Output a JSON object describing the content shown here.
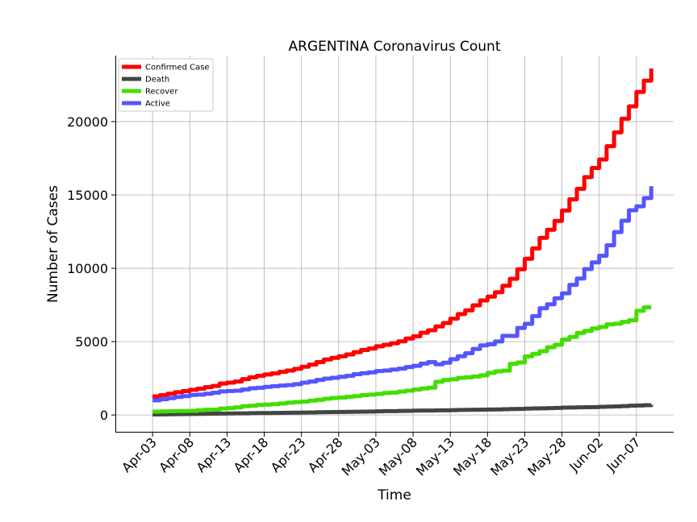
{
  "chart_data": {
    "type": "line",
    "title": "ARGENTINA Coronavirus Count",
    "xlabel": "Time",
    "ylabel": "Number of Cases",
    "x_start": "2020-04-03",
    "x_end": "2020-06-09",
    "xlim": [
      "2020-03-29",
      "2020-06-12"
    ],
    "ylim": [
      -1200,
      24500
    ],
    "x_ticks": [
      "Apr-03",
      "Apr-08",
      "Apr-13",
      "Apr-18",
      "Apr-23",
      "Apr-28",
      "May-03",
      "May-08",
      "May-13",
      "May-18",
      "May-23",
      "May-28",
      "Jun-02",
      "Jun-07"
    ],
    "y_ticks": [
      0,
      5000,
      10000,
      15000,
      20000
    ],
    "y_tick_labels": [
      "0",
      "5000",
      "10000",
      "15000",
      "20000"
    ],
    "grid": true,
    "legend_position": "top-left",
    "series": [
      {
        "name": "Confirmed Case",
        "color": "#ff0000",
        "values": [
          1265,
          1353,
          1451,
          1554,
          1628,
          1715,
          1795,
          1894,
          1975,
          2142,
          2208,
          2277,
          2443,
          2571,
          2669,
          2758,
          2839,
          2941,
          3031,
          3144,
          3288,
          3435,
          3607,
          3780,
          3892,
          4003,
          4127,
          4285,
          4428,
          4532,
          4681,
          4783,
          4887,
          5020,
          5208,
          5371,
          5611,
          5776,
          6034,
          6265,
          6563,
          6879,
          7134,
          7479,
          7805,
          8068,
          8371,
          8809,
          9283,
          9931,
          10649,
          11353,
          12076,
          12628,
          13228,
          13933,
          14702,
          15419,
          16214,
          16838,
          17415,
          18319,
          19268,
          20197,
          21037,
          22020,
          22794,
          23620
        ]
      },
      {
        "name": "Death",
        "color": "#444444",
        "values": [
          37,
          44,
          48,
          56,
          63,
          69,
          79,
          84,
          92,
          97,
          102,
          109,
          111,
          122,
          129,
          132,
          136,
          147,
          152,
          159,
          166,
          176,
          185,
          192,
          197,
          207,
          214,
          218,
          225,
          237,
          246,
          260,
          264,
          273,
          282,
          293,
          300,
          305,
          314,
          319,
          329,
          344,
          353,
          356,
          363,
          373,
          382,
          393,
          403,
          416,
          433,
          445,
          452,
          467,
          484,
          500,
          508,
          520,
          528,
          539,
          556,
          569,
          583,
          608,
          632,
          648,
          664,
          693
        ]
      },
      {
        "name": "Recover",
        "color": "#44dd00",
        "values": [
          228,
          240,
          256,
          266,
          279,
          280,
          325,
          358,
          365,
          440,
          468,
          515,
          596,
          631,
          685,
          709,
          737,
          787,
          840,
          880,
          916,
          976,
          1030,
          1107,
          1162,
          1192,
          1245,
          1283,
          1356,
          1391,
          1439,
          1498,
          1524,
          1591,
          1659,
          1728,
          1809,
          1864,
          2266,
          2385,
          2430,
          2534,
          2569,
          2625,
          2697,
          2872,
          2975,
          3021,
          3487,
          3580,
          3999,
          4167,
          4349,
          4617,
          4788,
          5140,
          5323,
          5597,
          5736,
          5896,
          6003,
          6180,
          6220,
          6346,
          6452,
          7100,
          7340,
          7340
        ]
      },
      {
        "name": "Active",
        "color": "#5555ff",
        "values": [
          1000,
          1069,
          1147,
          1232,
          1286,
          1366,
          1391,
          1452,
          1518,
          1605,
          1638,
          1653,
          1736,
          1818,
          1855,
          1917,
          1966,
          2007,
          2039,
          2105,
          2206,
          2283,
          2392,
          2481,
          2533,
          2604,
          2668,
          2784,
          2847,
          2904,
          2996,
          3025,
          3099,
          3156,
          3267,
          3350,
          3502,
          3607,
          3454,
          3561,
          3804,
          4001,
          4212,
          4498,
          4745,
          4823,
          5014,
          5395,
          5393,
          5935,
          6217,
          6741,
          7275,
          7544,
          7956,
          8293,
          8871,
          9302,
          9950,
          10403,
          10856,
          11570,
          12465,
          13243,
          13953,
          14224,
          14790,
          15587
        ]
      }
    ]
  }
}
